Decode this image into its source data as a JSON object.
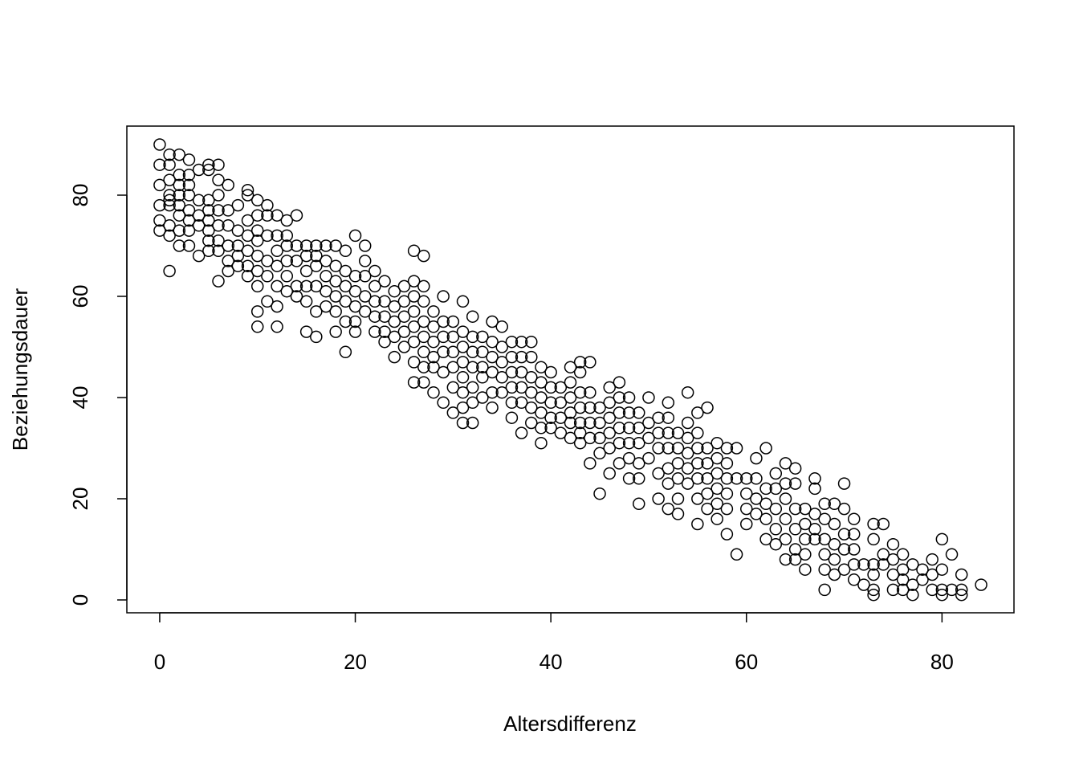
{
  "chart_data": {
    "type": "scatter",
    "x_label": "Altersdifferenz",
    "y_label": "Beziehungsdauer",
    "xlim": [
      -3.36,
      87.36
    ],
    "ylim": [
      -2.54,
      93.65
    ],
    "xticks": [
      0,
      20,
      40,
      60,
      80
    ],
    "yticks": [
      0,
      20,
      40,
      60,
      80
    ],
    "color": "#000000",
    "x": [
      0,
      0,
      0,
      0,
      0,
      0,
      1,
      1,
      1,
      1,
      1,
      1,
      1,
      1,
      1,
      2,
      2,
      2,
      2,
      2,
      2,
      2,
      2,
      3,
      3,
      3,
      3,
      3,
      3,
      3,
      3,
      4,
      4,
      4,
      4,
      4,
      5,
      5,
      5,
      5,
      5,
      5,
      5,
      5,
      6,
      6,
      6,
      6,
      6,
      6,
      6,
      6,
      7,
      7,
      7,
      7,
      7,
      7,
      8,
      8,
      8,
      8,
      8,
      9,
      9,
      9,
      9,
      9,
      9,
      9,
      10,
      10,
      10,
      10,
      10,
      10,
      10,
      10,
      10,
      11,
      11,
      11,
      11,
      11,
      11,
      12,
      12,
      12,
      12,
      12,
      12,
      12,
      13,
      13,
      13,
      13,
      13,
      13,
      14,
      14,
      14,
      14,
      14,
      15,
      15,
      15,
      15,
      15,
      15,
      16,
      16,
      16,
      16,
      16,
      16,
      17,
      17,
      17,
      17,
      17,
      18,
      18,
      18,
      18,
      18,
      18,
      19,
      19,
      19,
      19,
      19,
      19,
      20,
      20,
      20,
      20,
      20,
      20,
      21,
      21,
      21,
      21,
      21,
      22,
      22,
      22,
      22,
      22,
      23,
      23,
      23,
      23,
      23,
      24,
      24,
      24,
      24,
      24,
      25,
      25,
      25,
      25,
      25,
      26,
      26,
      26,
      26,
      26,
      26,
      26,
      26,
      27,
      27,
      27,
      27,
      27,
      27,
      27,
      27,
      28,
      28,
      28,
      28,
      28,
      28,
      29,
      29,
      29,
      29,
      29,
      29,
      30,
      30,
      30,
      30,
      30,
      30,
      31,
      31,
      31,
      31,
      31,
      31,
      31,
      31,
      32,
      32,
      32,
      32,
      32,
      32,
      32,
      33,
      33,
      33,
      33,
      33,
      34,
      34,
      34,
      34,
      34,
      34,
      35,
      35,
      35,
      35,
      35,
      36,
      36,
      36,
      36,
      36,
      36,
      37,
      37,
      37,
      37,
      37,
      37,
      38,
      38,
      38,
      38,
      38,
      38,
      39,
      39,
      39,
      39,
      39,
      39,
      40,
      40,
      40,
      40,
      40,
      41,
      41,
      41,
      41,
      42,
      42,
      42,
      42,
      42,
      42,
      43,
      43,
      43,
      43,
      43,
      43,
      43,
      44,
      44,
      44,
      44,
      44,
      44,
      45,
      45,
      45,
      45,
      45,
      46,
      46,
      46,
      46,
      46,
      46,
      47,
      47,
      47,
      47,
      47,
      47,
      48,
      48,
      48,
      48,
      48,
      48,
      49,
      49,
      49,
      49,
      49,
      49,
      50,
      50,
      50,
      50,
      51,
      51,
      51,
      51,
      51,
      52,
      52,
      52,
      52,
      52,
      52,
      52,
      53,
      53,
      53,
      53,
      53,
      53,
      54,
      54,
      54,
      54,
      54,
      54,
      55,
      55,
      55,
      55,
      55,
      55,
      55,
      56,
      56,
      56,
      56,
      56,
      56,
      57,
      57,
      57,
      57,
      57,
      57,
      58,
      58,
      58,
      58,
      58,
      58,
      59,
      59,
      59,
      60,
      60,
      60,
      60,
      61,
      61,
      61,
      61,
      62,
      62,
      62,
      62,
      62,
      63,
      63,
      63,
      63,
      63,
      64,
      64,
      64,
      64,
      64,
      64,
      65,
      65,
      65,
      65,
      65,
      65,
      66,
      66,
      66,
      66,
      66,
      67,
      67,
      67,
      67,
      67,
      68,
      68,
      68,
      68,
      68,
      68,
      69,
      69,
      69,
      69,
      69,
      70,
      70,
      70,
      70,
      70,
      71,
      71,
      71,
      71,
      71,
      72,
      72,
      73,
      73,
      73,
      73,
      73,
      73,
      74,
      74,
      74,
      75,
      75,
      75,
      75,
      76,
      76,
      76,
      76,
      77,
      77,
      77,
      78,
      78,
      79,
      79,
      79,
      80,
      80,
      80,
      80,
      81,
      81,
      82,
      82,
      82,
      84
    ],
    "y": [
      90,
      86,
      82,
      78,
      75,
      73,
      88,
      86,
      83,
      80,
      79,
      78,
      74,
      72,
      65,
      88,
      84,
      82,
      80,
      78,
      76,
      73,
      70,
      87,
      84,
      82,
      80,
      77,
      75,
      73,
      70,
      85,
      79,
      76,
      74,
      68,
      86,
      85,
      79,
      77,
      75,
      73,
      71,
      69,
      86,
      83,
      80,
      77,
      74,
      71,
      69,
      63,
      82,
      77,
      74,
      70,
      67,
      65,
      78,
      73,
      70,
      68,
      66,
      81,
      80,
      75,
      72,
      69,
      66,
      64,
      79,
      76,
      73,
      71,
      68,
      65,
      62,
      57,
      54,
      78,
      76,
      72,
      67,
      64,
      59,
      76,
      72,
      69,
      66,
      62,
      58,
      54,
      75,
      72,
      70,
      67,
      64,
      61,
      76,
      70,
      67,
      62,
      60,
      70,
      68,
      65,
      62,
      59,
      53,
      70,
      68,
      66,
      62,
      57,
      52,
      70,
      67,
      64,
      61,
      58,
      70,
      66,
      63,
      60,
      57,
      53,
      69,
      65,
      62,
      59,
      55,
      49,
      72,
      64,
      61,
      58,
      55,
      53,
      70,
      67,
      64,
      60,
      57,
      65,
      62,
      59,
      56,
      53,
      63,
      59,
      56,
      53,
      51,
      61,
      58,
      55,
      52,
      48,
      62,
      59,
      56,
      53,
      50,
      69,
      63,
      60,
      57,
      54,
      51,
      47,
      43,
      68,
      62,
      59,
      55,
      52,
      49,
      46,
      43,
      57,
      54,
      51,
      48,
      46,
      41,
      60,
      55,
      52,
      49,
      45,
      39,
      55,
      52,
      49,
      46,
      42,
      37,
      59,
      53,
      50,
      47,
      44,
      41,
      38,
      35,
      56,
      52,
      49,
      46,
      42,
      39,
      35,
      52,
      49,
      46,
      44,
      40,
      55,
      51,
      48,
      45,
      41,
      38,
      54,
      50,
      47,
      44,
      41,
      51,
      48,
      45,
      42,
      39,
      36,
      51,
      48,
      45,
      42,
      39,
      33,
      51,
      48,
      44,
      41,
      38,
      35,
      46,
      43,
      40,
      37,
      34,
      31,
      45,
      42,
      39,
      36,
      34,
      42,
      39,
      36,
      33,
      46,
      43,
      40,
      37,
      35,
      32,
      47,
      45,
      41,
      38,
      35,
      33,
      31,
      47,
      41,
      38,
      35,
      32,
      27,
      38,
      35,
      32,
      29,
      21,
      42,
      39,
      36,
      33,
      30,
      25,
      43,
      40,
      37,
      34,
      31,
      27,
      40,
      37,
      34,
      31,
      28,
      24,
      37,
      34,
      31,
      27,
      24,
      19,
      40,
      35,
      32,
      28,
      36,
      33,
      30,
      25,
      20,
      39,
      36,
      33,
      30,
      26,
      23,
      18,
      33,
      30,
      27,
      24,
      20,
      17,
      41,
      35,
      32,
      29,
      26,
      23,
      37,
      33,
      30,
      27,
      24,
      20,
      15,
      38,
      30,
      27,
      24,
      21,
      18,
      31,
      28,
      25,
      22,
      19,
      16,
      30,
      27,
      24,
      21,
      18,
      13,
      30,
      24,
      9,
      24,
      21,
      18,
      15,
      28,
      24,
      20,
      17,
      30,
      22,
      19,
      16,
      12,
      25,
      22,
      18,
      14,
      11,
      27,
      23,
      20,
      16,
      12,
      8,
      26,
      23,
      18,
      14,
      10,
      8,
      18,
      15,
      12,
      9,
      6,
      24,
      22,
      17,
      14,
      12,
      19,
      16,
      12,
      9,
      6,
      2,
      19,
      15,
      11,
      8,
      5,
      23,
      18,
      13,
      10,
      6,
      16,
      13,
      10,
      7,
      4,
      7,
      3,
      15,
      12,
      7,
      5,
      2,
      1,
      15,
      9,
      7,
      11,
      8,
      5,
      2,
      9,
      6,
      4,
      2,
      7,
      3,
      1,
      6,
      4,
      8,
      5,
      2,
      12,
      6,
      2,
      1,
      9,
      2,
      5,
      2,
      1,
      3
    ]
  }
}
